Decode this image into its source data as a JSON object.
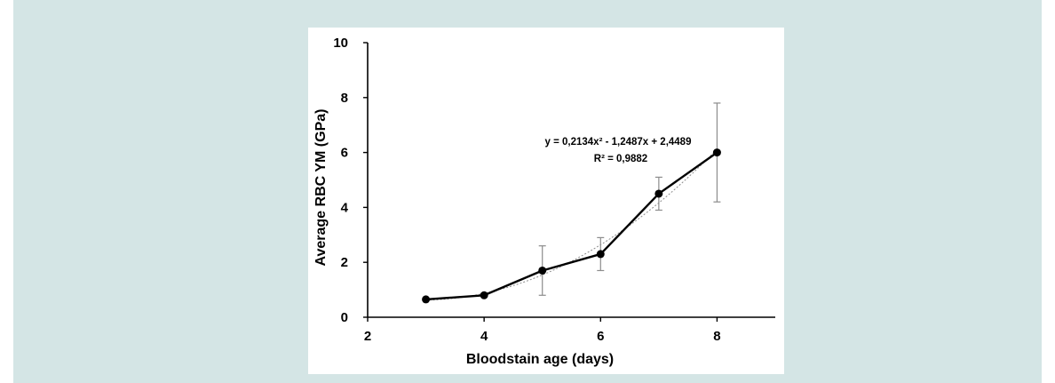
{
  "colors": {
    "background": "#d4e5e5",
    "panel": "#ffffff",
    "line": "#000000",
    "trendline": "#8c8c8c",
    "error_bar": "#8c8c8c"
  },
  "chart_data": {
    "type": "line",
    "xlabel": "Bloodstain age (days)",
    "ylabel": "Average RBC YM (GPa)",
    "xlim": [
      2,
      9
    ],
    "ylim": [
      0,
      10
    ],
    "xticks": [
      2,
      4,
      6,
      8
    ],
    "yticks": [
      0,
      2,
      4,
      6,
      8,
      10
    ],
    "grid": false,
    "series": [
      {
        "x": [
          3,
          4,
          5,
          6,
          7,
          8
        ],
        "y": [
          0.65,
          0.8,
          1.7,
          2.3,
          4.5,
          6.0
        ],
        "error": [
          0.05,
          0.05,
          0.9,
          0.6,
          0.6,
          1.8
        ]
      }
    ],
    "trendline": {
      "type": "polynomial",
      "coefficients": [
        0.2134,
        -1.2487,
        2.4489
      ],
      "equation": "y = 0,2134x² - 1,2487x + 2,4489",
      "r_squared": "R² = 0,9882"
    }
  }
}
